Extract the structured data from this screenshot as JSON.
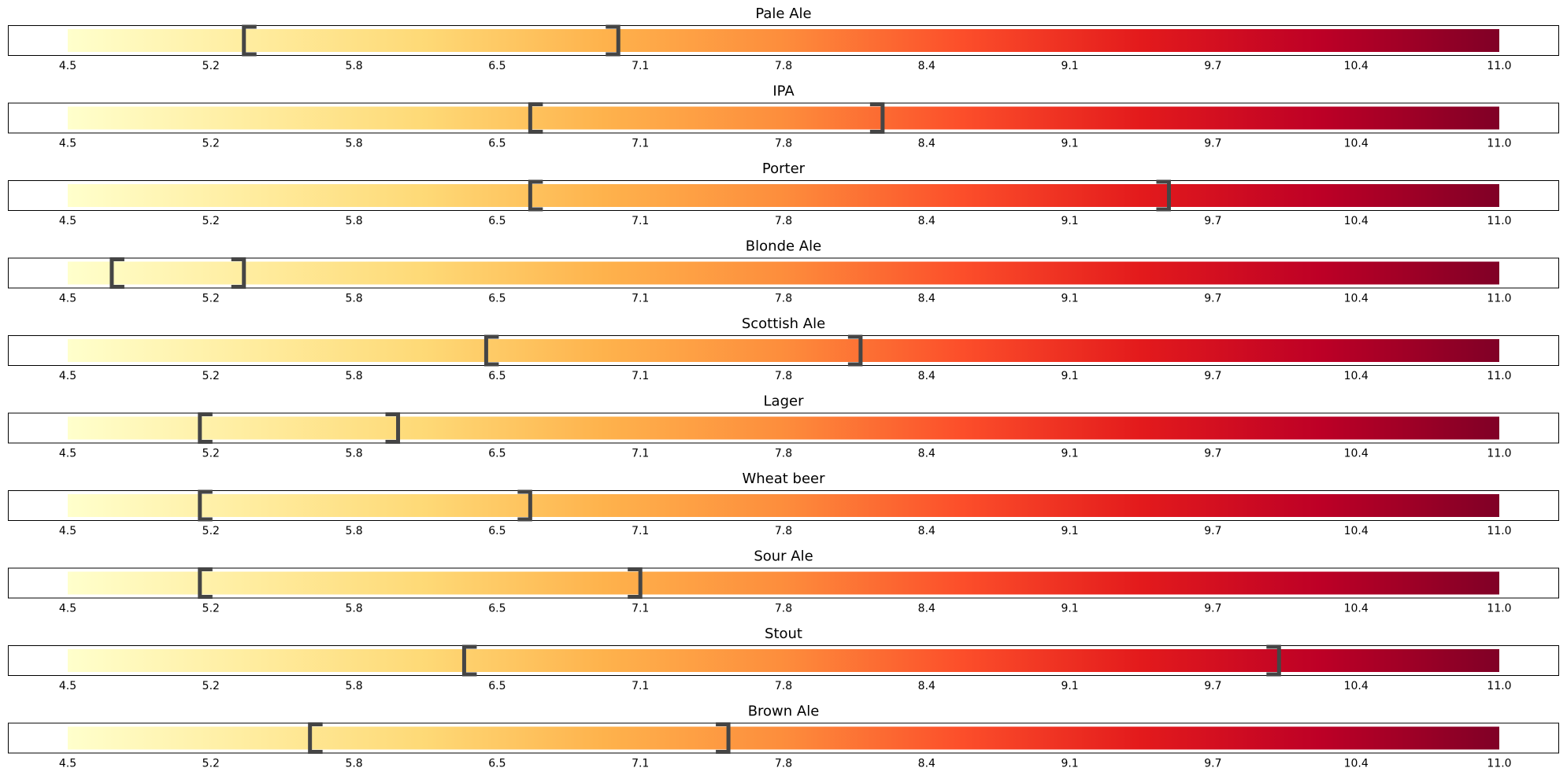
{
  "chart_data": {
    "type": "range-gradient-bars",
    "xlim": [
      4.5,
      11.0
    ],
    "tick_labels": [
      "4.5",
      "5.2",
      "5.8",
      "6.5",
      "7.1",
      "7.8",
      "8.4",
      "9.1",
      "9.7",
      "10.4",
      "11.0"
    ],
    "colormap": [
      "#ffffcc",
      "#ffeda0",
      "#fed976",
      "#feb24c",
      "#fd8d3c",
      "#fc4e2a",
      "#e31a1c",
      "#bd0026",
      "#800026"
    ],
    "bracket_color": "#454545",
    "rows": [
      {
        "title": "Pale Ale",
        "low": 5.3,
        "high": 7.0
      },
      {
        "title": "IPA",
        "low": 6.6,
        "high": 8.2
      },
      {
        "title": "Porter",
        "low": 6.6,
        "high": 9.5
      },
      {
        "title": "Blonde Ale",
        "low": 4.7,
        "high": 5.3
      },
      {
        "title": "Scottish Ale",
        "low": 6.4,
        "high": 8.1
      },
      {
        "title": "Lager",
        "low": 5.1,
        "high": 6.0
      },
      {
        "title": "Wheat beer",
        "low": 5.1,
        "high": 6.6
      },
      {
        "title": "Sour Ale",
        "low": 5.1,
        "high": 7.1
      },
      {
        "title": "Stout",
        "low": 6.3,
        "high": 10.0
      },
      {
        "title": "Brown Ale",
        "low": 5.6,
        "high": 7.5
      }
    ]
  }
}
